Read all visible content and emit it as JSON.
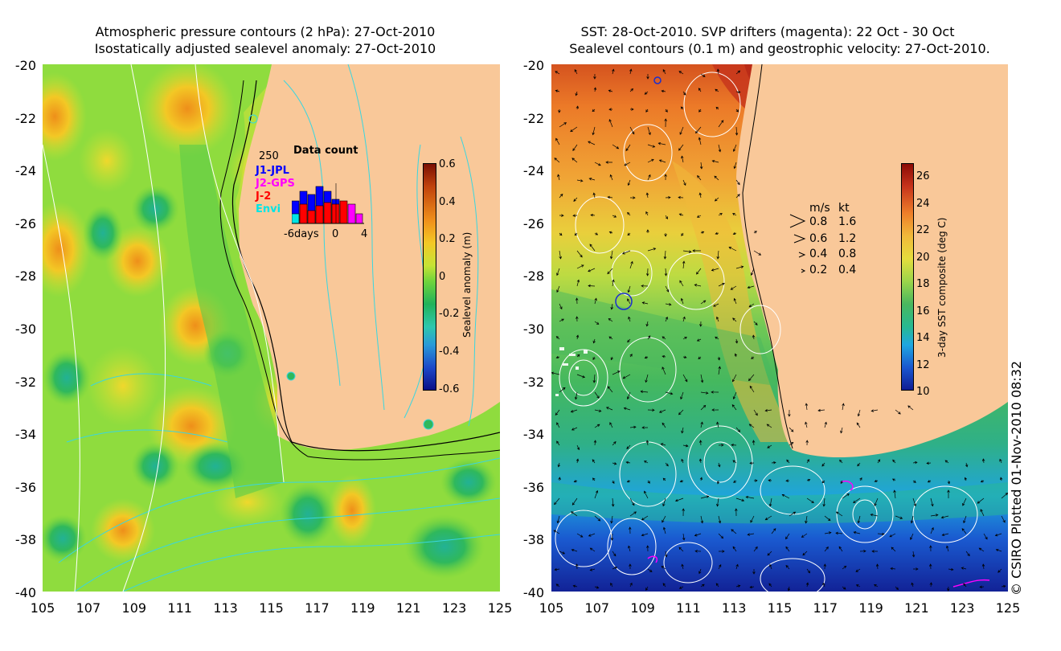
{
  "left_panel": {
    "title_line1": "Atmospheric pressure contours (2 hPa): 27-Oct-2010",
    "title_line2": "Isostatically adjusted sealevel anomaly: 27-Oct-2010",
    "y_ticks": [
      "-20",
      "-22",
      "-24",
      "-26",
      "-28",
      "-30",
      "-32",
      "-34",
      "-36",
      "-38",
      "-40"
    ],
    "x_ticks": [
      "105",
      "107",
      "109",
      "111",
      "113",
      "115",
      "117",
      "119",
      "121",
      "123",
      "125"
    ],
    "colorbar": {
      "title": "Sealevel anomaly (m)",
      "labels": [
        "0.6",
        "0.4",
        "0.2",
        "0",
        "-0.2",
        "-0.4",
        "-0.6"
      ]
    },
    "data_count": {
      "title": "Data count",
      "max_label": "250",
      "x_labels": [
        "-6days",
        "0",
        "4"
      ],
      "legend": [
        {
          "name": "J1-JPL",
          "color": "#0000ff"
        },
        {
          "name": "J2-GPS",
          "color": "#ff00ff"
        },
        {
          "name": "J-2",
          "color": "#ff0000"
        },
        {
          "name": "Envi",
          "color": "#00e5e5"
        }
      ]
    }
  },
  "right_panel": {
    "title_line1": "SST: 28-Oct-2010. SVP drifters (magenta): 22 Oct - 30 Oct",
    "title_line2": "Sealevel contours (0.1 m) and geostrophic velocity: 27-Oct-2010.",
    "y_ticks": [
      "-20",
      "-22",
      "-24",
      "-26",
      "-28",
      "-30",
      "-32",
      "-34",
      "-36",
      "-38",
      "-40"
    ],
    "x_ticks": [
      "105",
      "107",
      "109",
      "111",
      "113",
      "115",
      "117",
      "119",
      "121",
      "123",
      "125"
    ],
    "colorbar": {
      "title": "3-day SST composite (deg C)",
      "labels": [
        "26",
        "24",
        "22",
        "20",
        "18",
        "16",
        "14",
        "12",
        "10"
      ]
    },
    "velocity_legend": {
      "header_ms": "m/s",
      "header_kt": "kt",
      "rows": [
        {
          "ms": "0.8",
          "kt": "1.6"
        },
        {
          "ms": "0.6",
          "kt": "1.2"
        },
        {
          "ms": "0.4",
          "kt": "0.8"
        },
        {
          "ms": "0.2",
          "kt": "0.4"
        }
      ]
    }
  },
  "credit": "© CSIRO Plotted 01-Nov-2010 08:32",
  "colors": {
    "land": "#f9c899",
    "contour_cyan": "#39d6e0",
    "contour_white": "#ffffff",
    "ssa_cbar": [
      "#7a0f03",
      "#c0420c",
      "#ef8f1b",
      "#f3c825",
      "#c6e335",
      "#6fd43c",
      "#22b25a",
      "#2dc7ad",
      "#2a9ad8",
      "#1d49c9",
      "#0b0e86"
    ],
    "sst_cbar": [
      "#8b0a05",
      "#c6331b",
      "#ee7f2a",
      "#f1b93a",
      "#e5dd3d",
      "#9bd54a",
      "#49b75e",
      "#28b991",
      "#1fa7e0",
      "#1a57d0",
      "#101c93"
    ]
  }
}
